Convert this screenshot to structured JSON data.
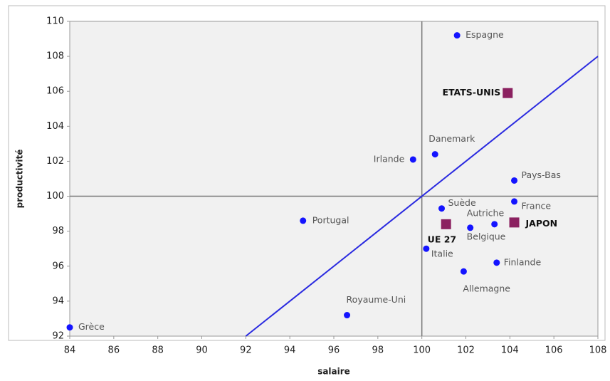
{
  "chart_data": {
    "type": "scatter",
    "xlabel": "salaire",
    "ylabel": "productivité",
    "xlim": [
      84,
      108
    ],
    "ylim": [
      92,
      110
    ],
    "xticks": [
      84,
      86,
      88,
      90,
      92,
      94,
      96,
      98,
      100,
      102,
      104,
      106,
      108
    ],
    "yticks": [
      92,
      94,
      96,
      98,
      100,
      102,
      104,
      106,
      108,
      110
    ],
    "reference_x": 100,
    "reference_y": 100,
    "diagonal": {
      "color": "#2a2ae0",
      "x": [
        92,
        108
      ],
      "y": [
        92,
        108
      ]
    },
    "series": [
      {
        "color": "#1414ff",
        "marker": "circle",
        "labels": [
          "Espagne",
          "Danemark",
          "Irlande",
          "Pays-Bas",
          "France",
          "Suède",
          "Portugal",
          "Autriche",
          "Belgique",
          "Italie",
          "Finlande",
          "Allemagne",
          "Royaume-Uni",
          "Grèce"
        ],
        "x": [
          101.6,
          100.6,
          99.6,
          104.2,
          104.2,
          100.9,
          94.6,
          103.3,
          102.2,
          100.2,
          103.4,
          101.9,
          96.6,
          84.0
        ],
        "y": [
          109.2,
          102.4,
          102.1,
          100.9,
          99.7,
          99.3,
          98.6,
          98.4,
          98.2,
          97.0,
          96.2,
          95.7,
          93.2,
          92.5
        ]
      },
      {
        "color": "#8b2160",
        "marker": "square",
        "labels": [
          "ETATS-UNIS",
          "UE 27",
          "JAPON"
        ],
        "x": [
          103.9,
          101.1,
          104.2
        ],
        "y": [
          105.9,
          98.4,
          98.5
        ]
      }
    ]
  }
}
